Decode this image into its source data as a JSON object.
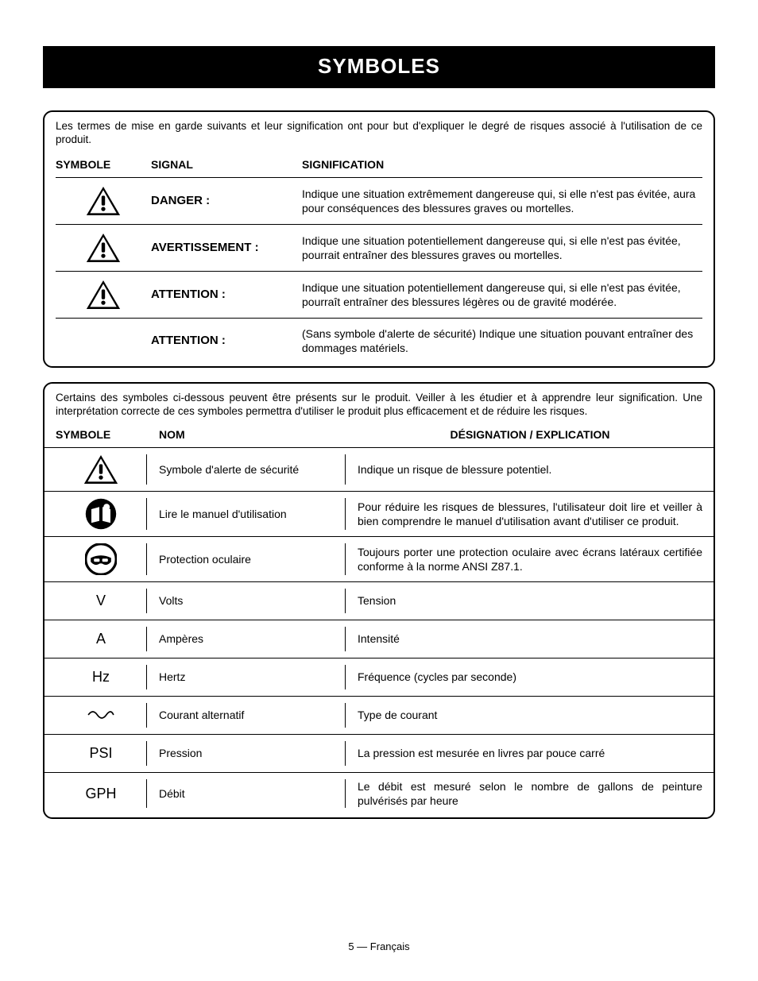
{
  "page": {
    "title": "SYMBOLES",
    "footer": "5 — Français"
  },
  "table1": {
    "intro": "Les termes de mise en garde suivants et leur signification ont pour but d'expliquer le degré de risques associé à l'utilisation de ce produit.",
    "header": {
      "c1": "SYMBOLE",
      "c2": "SIGNAL",
      "c3": "SIGNIFICATION"
    },
    "rows": [
      {
        "has_icon": true,
        "signal": "DANGER :",
        "meaning": "Indique une situation extrêmement dangereuse qui, si elle n'est pas évitée, aura pour conséquences des blessures graves ou mortelles."
      },
      {
        "has_icon": true,
        "signal": "AVERTISSEMENT :",
        "meaning": "Indique une situation potentiellement dangereuse qui, si elle n'est pas évitée, pourrait entraîner des blessures graves ou mortelles."
      },
      {
        "has_icon": true,
        "signal": "ATTENTION :",
        "meaning": "Indique une situation potentiellement dangereuse qui, si elle n'est pas évitée, pourraît entraîner des blessures légères ou de gravité modérée."
      },
      {
        "has_icon": false,
        "signal": "ATTENTION :",
        "meaning": "(Sans symbole d'alerte de sécurité) Indique une situation pouvant entraîner des dommages matériels."
      }
    ]
  },
  "table2": {
    "intro": "Certains des symboles ci-dessous peuvent être présents sur le produit. Veiller à les étudier et à apprendre leur signification. Une interprétation correcte de ces symboles permettra d'utiliser le produit plus efficacement et de réduire les risques.",
    "header": {
      "c1": "SYMBOLE",
      "c2": "NOM",
      "c3": "DÉSIGNATION / EXPLICATION"
    },
    "rows": [
      {
        "icon": "alert",
        "name": "Symbole d'alerte de sécurité",
        "desc": "Indique un risque de blessure potentiel."
      },
      {
        "icon": "manual",
        "name": "Lire le manuel d'utilisation",
        "desc": "Pour réduire les risques de blessures, l'utilisateur doit lire et veiller à bien comprendre le manuel d'utilisation avant d'utiliser ce produit."
      },
      {
        "icon": "eye",
        "name": "Protection oculaire",
        "desc": "Toujours porter une protection oculaire avec écrans latéraux certifiée conforme à la norme ANSI Z87.1."
      },
      {
        "icon": "text",
        "symbol_text": "V",
        "name": "Volts",
        "desc": "Tension"
      },
      {
        "icon": "text",
        "symbol_text": "A",
        "name": "Ampères",
        "desc": "Intensité"
      },
      {
        "icon": "text",
        "symbol_text": "Hz",
        "name": "Hertz",
        "desc": "Fréquence (cycles par seconde)"
      },
      {
        "icon": "ac",
        "name": "Courant alternatif",
        "desc": "Type de courant"
      },
      {
        "icon": "text",
        "symbol_text": "PSI",
        "name": "Pression",
        "desc": "La pression est mesurée en livres par pouce carré"
      },
      {
        "icon": "text",
        "symbol_text": "GPH",
        "name": "Débit",
        "desc": "Le débit est mesuré selon le nombre de gallons de peinture pulvérisés par heure"
      }
    ]
  },
  "style": {
    "background": "#ffffff",
    "text_color": "#000000",
    "title_bg": "#000000",
    "title_color": "#ffffff",
    "title_fontsize": 26,
    "body_fontsize": 14,
    "intro_fontsize": 13.5,
    "border_color": "#000000",
    "border_radius": 12,
    "row_border": "#000000"
  }
}
